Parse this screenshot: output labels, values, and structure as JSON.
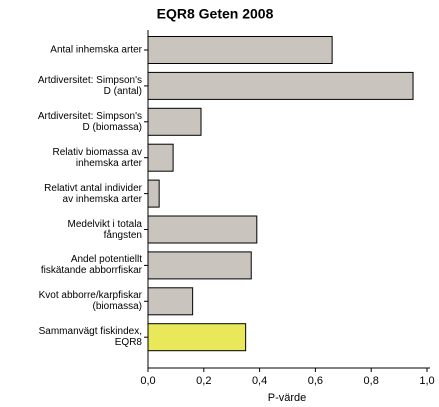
{
  "chart_data": {
    "type": "barh",
    "title": "EQR8 Geten 2008",
    "x_label": "P-värde",
    "categories": [
      "Antal inhemska arter",
      "Artdiversitet: Simpson's\nD (antal)",
      "Artdiversitet: Simpson's\nD (biomassa)",
      "Relativ biomassa av\ninhemska arter",
      "Relativt antal individer\nav inhemska arter",
      "Medelvikt i totala\nfångsten",
      "Andel potentiellt\nfiskätande abborrfiskar",
      "Kvot abborre/karpfiskar\n(biomassa)",
      "Sammanvägt fiskindex,\nEQR8"
    ],
    "values": [
      0.66,
      0.95,
      0.19,
      0.09,
      0.04,
      0.39,
      0.37,
      0.16,
      0.35
    ],
    "colors": [
      "#c9c5be",
      "#c9c5be",
      "#c9c5be",
      "#c9c5be",
      "#c9c5be",
      "#c9c5be",
      "#c9c5be",
      "#c9c5be",
      "#e8e85a"
    ],
    "xlim": [
      0,
      1.0
    ],
    "xticks": [
      {
        "value": 0,
        "label": "0,0"
      },
      {
        "value": 0.2,
        "label": "0,2"
      },
      {
        "value": 0.4,
        "label": "0,4"
      },
      {
        "value": 0.6,
        "label": "0,6"
      },
      {
        "value": 0.8,
        "label": "0,8"
      },
      {
        "value": 1.0,
        "label": "1,0"
      }
    ]
  }
}
